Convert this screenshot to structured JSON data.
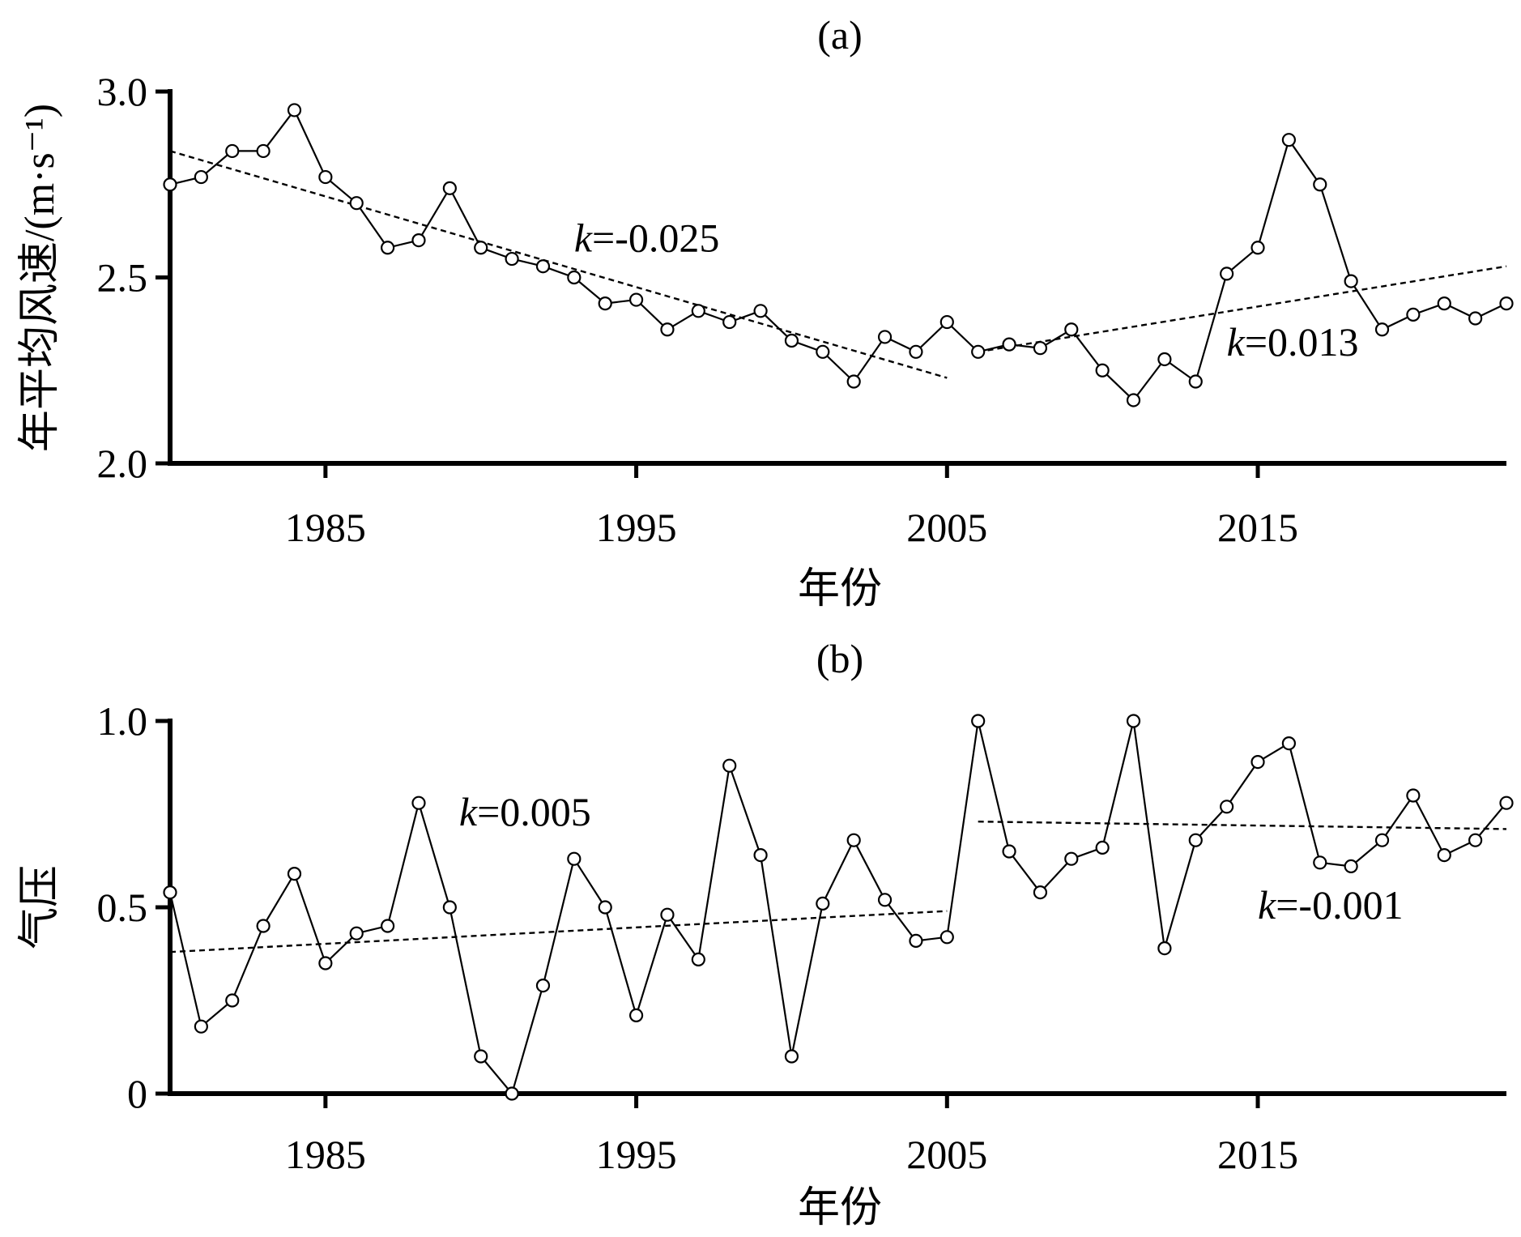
{
  "chart_data": [
    {
      "type": "line",
      "title": "(a)",
      "xlabel": "年份",
      "ylabel": "年平均风速/(m·s⁻¹)",
      "xlim": [
        1980,
        2023
      ],
      "ylim": [
        2.0,
        3.0
      ],
      "xticks": [
        1985,
        1995,
        2005,
        2015
      ],
      "yticks": [
        2.0,
        2.5,
        3.0
      ],
      "ytick_labels": [
        "2.0",
        "2.5",
        "3.0"
      ],
      "x": [
        1980,
        1981,
        1982,
        1983,
        1984,
        1985,
        1986,
        1987,
        1988,
        1989,
        1990,
        1991,
        1992,
        1993,
        1994,
        1995,
        1996,
        1997,
        1998,
        1999,
        2000,
        2001,
        2002,
        2003,
        2004,
        2005,
        2006,
        2007,
        2008,
        2009,
        2010,
        2011,
        2012,
        2013,
        2014,
        2015,
        2016,
        2017,
        2018,
        2019,
        2020,
        2021,
        2022,
        2023
      ],
      "series": [
        {
          "name": "年平均风速",
          "values": [
            2.75,
            2.77,
            2.84,
            2.84,
            2.95,
            2.77,
            2.7,
            2.58,
            2.6,
            2.74,
            2.58,
            2.55,
            2.53,
            2.5,
            2.43,
            2.44,
            2.36,
            2.41,
            2.38,
            2.41,
            2.33,
            2.3,
            2.22,
            2.34,
            2.3,
            2.38,
            2.3,
            2.32,
            2.31,
            2.36,
            2.25,
            2.17,
            2.28,
            2.22,
            2.51,
            2.58,
            2.87,
            2.75,
            2.49,
            2.36,
            2.4,
            2.43,
            2.39,
            2.43
          ]
        }
      ],
      "trendlines": [
        {
          "x": [
            1980,
            2005
          ],
          "y": [
            2.84,
            2.23
          ]
        },
        {
          "x": [
            2006,
            2023
          ],
          "y": [
            2.3,
            2.53
          ]
        }
      ],
      "annotations": [
        {
          "k": "k",
          "rest": "=-0.025",
          "x": 1993.0,
          "y": 2.57
        },
        {
          "k": "k",
          "rest": "=0.013",
          "x": 2014.0,
          "y": 2.29
        }
      ]
    },
    {
      "type": "line",
      "title": "(b)",
      "xlabel": "年份",
      "ylabel": "气压",
      "xlim": [
        1980,
        2023
      ],
      "ylim": [
        0,
        1.0
      ],
      "xticks": [
        1985,
        1995,
        2005,
        2015
      ],
      "yticks": [
        0,
        0.5,
        1.0
      ],
      "ytick_labels": [
        "0",
        "0.5",
        "1.0"
      ],
      "x": [
        1980,
        1981,
        1982,
        1983,
        1984,
        1985,
        1986,
        1987,
        1988,
        1989,
        1990,
        1991,
        1992,
        1993,
        1994,
        1995,
        1996,
        1997,
        1998,
        1999,
        2000,
        2001,
        2002,
        2003,
        2004,
        2005,
        2006,
        2007,
        2008,
        2009,
        2010,
        2011,
        2012,
        2013,
        2014,
        2015,
        2016,
        2017,
        2018,
        2019,
        2020,
        2021,
        2022,
        2023
      ],
      "series": [
        {
          "name": "气压",
          "values": [
            0.54,
            0.18,
            0.25,
            0.45,
            0.59,
            0.35,
            0.43,
            0.45,
            0.78,
            0.5,
            0.1,
            0.0,
            0.29,
            0.63,
            0.5,
            0.21,
            0.48,
            0.36,
            0.88,
            0.64,
            0.1,
            0.51,
            0.68,
            0.52,
            0.41,
            0.42,
            1.0,
            0.65,
            0.54,
            0.63,
            0.66,
            1.0,
            0.39,
            0.68,
            0.77,
            0.89,
            0.94,
            0.62,
            0.61,
            0.68,
            0.8,
            0.64,
            0.68,
            0.78
          ]
        }
      ],
      "trendlines": [
        {
          "x": [
            1980,
            2005
          ],
          "y": [
            0.38,
            0.49
          ]
        },
        {
          "x": [
            2006,
            2023
          ],
          "y": [
            0.73,
            0.71
          ]
        }
      ],
      "annotations": [
        {
          "k": "k",
          "rest": "=0.005",
          "x": 1989.3,
          "y": 0.72
        },
        {
          "k": "k",
          "rest": "=-0.001",
          "x": 2015.0,
          "y": 0.47
        }
      ]
    }
  ]
}
